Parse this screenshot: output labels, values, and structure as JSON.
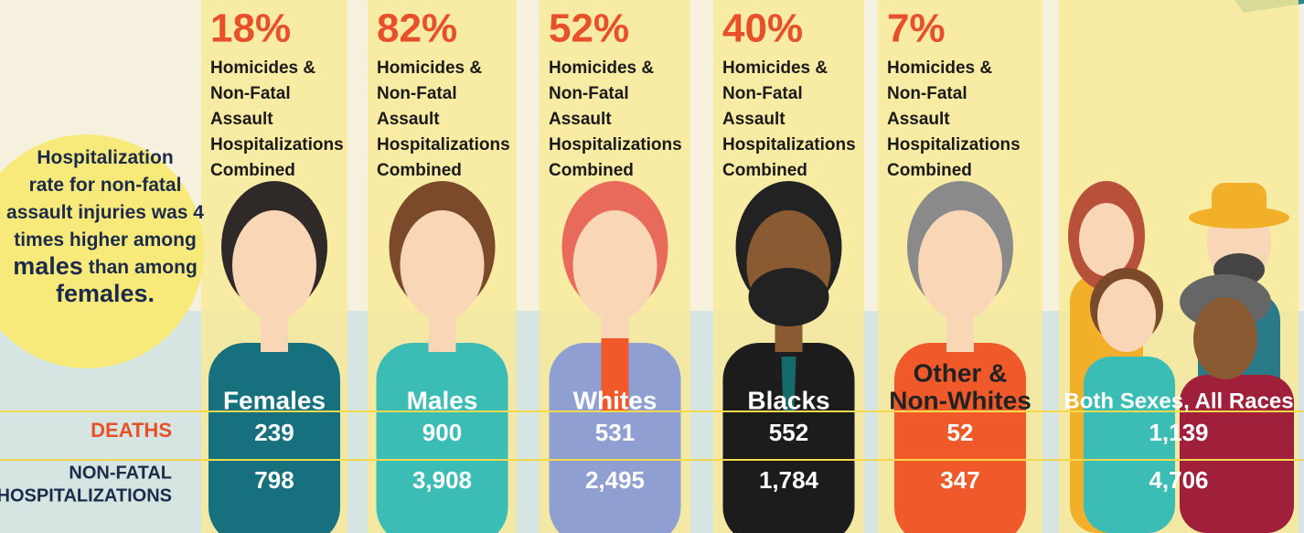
{
  "callout": {
    "lines": [
      [
        "Hospitalization"
      ],
      [
        "rate for non-fatal"
      ],
      [
        "assault injuries was 4"
      ],
      [
        "times higher among"
      ],
      [
        "males",
        "than among"
      ],
      [
        "females."
      ]
    ]
  },
  "row_labels": {
    "deaths": "DEATHS",
    "hospitalizations": [
      "NON-FATAL",
      "HOSPITALIZATIONS"
    ]
  },
  "columns": [
    {
      "percent": "18%",
      "description": [
        "Homicides &",
        "Non-Fatal",
        "Assault",
        "Hospitalizations",
        "Combined"
      ],
      "label": [
        "Females"
      ],
      "deaths": "239",
      "hospitalizations": "798"
    },
    {
      "percent": "82%",
      "description": [
        "Homicides &",
        "Non-Fatal",
        "Assault",
        "Hospitalizations",
        "Combined"
      ],
      "label": [
        "Males"
      ],
      "deaths": "900",
      "hospitalizations": "3,908"
    },
    {
      "percent": "52%",
      "description": [
        "Homicides &",
        "Non-Fatal",
        "Assault",
        "Hospitalizations",
        "Combined"
      ],
      "label": [
        "Whites"
      ],
      "deaths": "531",
      "hospitalizations": "2,495"
    },
    {
      "percent": "40%",
      "description": [
        "Homicides &",
        "Non-Fatal",
        "Assault",
        "Hospitalizations",
        "Combined"
      ],
      "label": [
        "Blacks"
      ],
      "deaths": "552",
      "hospitalizations": "1,784"
    },
    {
      "percent": "7%",
      "description": [
        "Homicides &",
        "Non-Fatal",
        "Assault",
        "Hospitalizations",
        "Combined"
      ],
      "label": [
        "Other &",
        "Non-Whites"
      ],
      "deaths": "52",
      "hospitalizations": "347"
    },
    {
      "label": [
        "Both Sexes, All Races"
      ],
      "deaths": "1,139",
      "hospitalizations": "4,706"
    }
  ]
}
